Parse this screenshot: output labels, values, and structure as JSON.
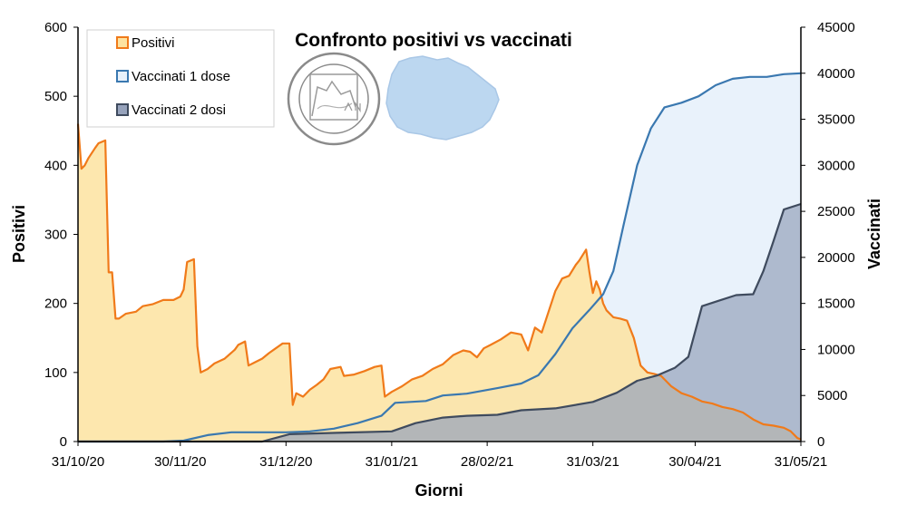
{
  "chart_data": {
    "type": "area",
    "title": "Confronto positivi vs vaccinati",
    "xlabel": "Giorni",
    "ylabel": "Positivi",
    "y2label": "Vaccinati",
    "x_ticks": [
      "31/10/20",
      "30/11/20",
      "31/12/20",
      "31/01/21",
      "28/02/21",
      "31/03/21",
      "30/04/21",
      "31/05/21"
    ],
    "ylim": [
      0,
      600
    ],
    "y_ticks": [
      "0",
      "100",
      "200",
      "300",
      "400",
      "500",
      "600"
    ],
    "y2lim": [
      0,
      45000
    ],
    "y2_ticks": [
      "0",
      "5000",
      "10000",
      "15000",
      "20000",
      "25000",
      "30000",
      "35000",
      "40000",
      "45000"
    ],
    "legend_position": "top-left",
    "colors": {
      "positivi_line": "#F07A1A",
      "positivi_fill": "#FDE3A0",
      "dose1_line": "#3A78B0",
      "dose1_fill": "#E7F1FB",
      "dose2_line": "#3F4B5E",
      "dose2_fill": "#97A3BC"
    },
    "series": [
      {
        "name": "Positivi",
        "axis": "left",
        "points": [
          [
            "2020-10-31",
            460
          ],
          [
            "2020-11-01",
            395
          ],
          [
            "2020-11-02",
            400
          ],
          [
            "2020-11-03",
            410
          ],
          [
            "2020-11-05",
            425
          ],
          [
            "2020-11-06",
            432
          ],
          [
            "2020-11-08",
            436
          ],
          [
            "2020-11-09",
            245
          ],
          [
            "2020-11-10",
            245
          ],
          [
            "2020-11-11",
            178
          ],
          [
            "2020-11-12",
            178
          ],
          [
            "2020-11-14",
            185
          ],
          [
            "2020-11-17",
            188
          ],
          [
            "2020-11-19",
            196
          ],
          [
            "2020-11-22",
            199
          ],
          [
            "2020-11-25",
            205
          ],
          [
            "2020-11-28",
            205
          ],
          [
            "2020-11-30",
            210
          ],
          [
            "2020-12-01",
            220
          ],
          [
            "2020-12-02",
            260
          ],
          [
            "2020-12-04",
            264
          ],
          [
            "2020-12-05",
            138
          ],
          [
            "2020-12-06",
            100
          ],
          [
            "2020-12-08",
            105
          ],
          [
            "2020-12-10",
            113
          ],
          [
            "2020-12-13",
            120
          ],
          [
            "2020-12-16",
            133
          ],
          [
            "2020-12-17",
            140
          ],
          [
            "2020-12-19",
            145
          ],
          [
            "2020-12-20",
            110
          ],
          [
            "2020-12-22",
            115
          ],
          [
            "2020-12-24",
            120
          ],
          [
            "2020-12-26",
            128
          ],
          [
            "2020-12-28",
            135
          ],
          [
            "2020-12-30",
            142
          ],
          [
            "2021-01-01",
            142
          ],
          [
            "2021-01-02",
            53
          ],
          [
            "2021-01-03",
            70
          ],
          [
            "2021-01-05",
            65
          ],
          [
            "2021-01-07",
            75
          ],
          [
            "2021-01-09",
            82
          ],
          [
            "2021-01-11",
            90
          ],
          [
            "2021-01-13",
            105
          ],
          [
            "2021-01-16",
            108
          ],
          [
            "2021-01-17",
            95
          ],
          [
            "2021-01-20",
            97
          ],
          [
            "2021-01-23",
            102
          ],
          [
            "2021-01-26",
            108
          ],
          [
            "2021-01-28",
            110
          ],
          [
            "2021-01-29",
            65
          ],
          [
            "2021-01-31",
            72
          ],
          [
            "2021-02-03",
            80
          ],
          [
            "2021-02-06",
            90
          ],
          [
            "2021-02-09",
            95
          ],
          [
            "2021-02-12",
            105
          ],
          [
            "2021-02-15",
            112
          ],
          [
            "2021-02-18",
            125
          ],
          [
            "2021-02-21",
            132
          ],
          [
            "2021-02-23",
            130
          ],
          [
            "2021-02-25",
            122
          ],
          [
            "2021-02-27",
            135
          ],
          [
            "2021-03-01",
            140
          ],
          [
            "2021-03-04",
            148
          ],
          [
            "2021-03-07",
            158
          ],
          [
            "2021-03-10",
            155
          ],
          [
            "2021-03-12",
            132
          ],
          [
            "2021-03-14",
            165
          ],
          [
            "2021-03-16",
            158
          ],
          [
            "2021-03-18",
            188
          ],
          [
            "2021-03-20",
            218
          ],
          [
            "2021-03-22",
            236
          ],
          [
            "2021-03-24",
            240
          ],
          [
            "2021-03-26",
            256
          ],
          [
            "2021-03-27",
            262
          ],
          [
            "2021-03-29",
            278
          ],
          [
            "2021-03-30",
            245
          ],
          [
            "2021-03-31",
            215
          ],
          [
            "2021-04-01",
            232
          ],
          [
            "2021-04-02",
            220
          ],
          [
            "2021-04-03",
            200
          ],
          [
            "2021-04-04",
            190
          ],
          [
            "2021-04-06",
            180
          ],
          [
            "2021-04-08",
            178
          ],
          [
            "2021-04-10",
            175
          ],
          [
            "2021-04-12",
            150
          ],
          [
            "2021-04-14",
            110
          ],
          [
            "2021-04-16",
            100
          ],
          [
            "2021-04-18",
            98
          ],
          [
            "2021-04-20",
            95
          ],
          [
            "2021-04-23",
            80
          ],
          [
            "2021-04-26",
            70
          ],
          [
            "2021-04-29",
            65
          ],
          [
            "2021-05-02",
            58
          ],
          [
            "2021-05-05",
            55
          ],
          [
            "2021-05-08",
            50
          ],
          [
            "2021-05-11",
            47
          ],
          [
            "2021-05-14",
            42
          ],
          [
            "2021-05-17",
            32
          ],
          [
            "2021-05-20",
            25
          ],
          [
            "2021-05-23",
            23
          ],
          [
            "2021-05-26",
            20
          ],
          [
            "2021-05-28",
            15
          ],
          [
            "2021-05-30",
            5
          ],
          [
            "2021-05-31",
            3
          ]
        ]
      },
      {
        "name": "Vaccinati 1 dose",
        "axis": "right",
        "points": [
          [
            "2020-10-31",
            0
          ],
          [
            "2020-11-25",
            0
          ],
          [
            "2020-12-01",
            100
          ],
          [
            "2020-12-08",
            700
          ],
          [
            "2020-12-15",
            1000
          ],
          [
            "2020-12-31",
            1000
          ],
          [
            "2021-01-07",
            1100
          ],
          [
            "2021-01-14",
            1400
          ],
          [
            "2021-01-21",
            2000
          ],
          [
            "2021-01-28",
            2800
          ],
          [
            "2021-02-01",
            4200
          ],
          [
            "2021-02-10",
            4400
          ],
          [
            "2021-02-15",
            5000
          ],
          [
            "2021-02-22",
            5200
          ],
          [
            "2021-03-03",
            5800
          ],
          [
            "2021-03-10",
            6300
          ],
          [
            "2021-03-15",
            7200
          ],
          [
            "2021-03-20",
            9500
          ],
          [
            "2021-03-25",
            12300
          ],
          [
            "2021-03-30",
            14300
          ],
          [
            "2021-04-03",
            16000
          ],
          [
            "2021-04-06",
            18500
          ],
          [
            "2021-04-09",
            23500
          ],
          [
            "2021-04-13",
            30000
          ],
          [
            "2021-04-17",
            34000
          ],
          [
            "2021-04-21",
            36300
          ],
          [
            "2021-04-26",
            36800
          ],
          [
            "2021-05-01",
            37500
          ],
          [
            "2021-05-06",
            38700
          ],
          [
            "2021-05-11",
            39400
          ],
          [
            "2021-05-16",
            39600
          ],
          [
            "2021-05-21",
            39600
          ],
          [
            "2021-05-26",
            39900
          ],
          [
            "2021-05-31",
            40000
          ]
        ]
      },
      {
        "name": "Vaccinati 2 dosi",
        "axis": "right",
        "points": [
          [
            "2020-10-31",
            0
          ],
          [
            "2020-12-24",
            0
          ],
          [
            "2021-01-01",
            800
          ],
          [
            "2021-01-15",
            950
          ],
          [
            "2021-01-31",
            1100
          ],
          [
            "2021-02-07",
            2000
          ],
          [
            "2021-02-15",
            2600
          ],
          [
            "2021-02-22",
            2800
          ],
          [
            "2021-03-03",
            2900
          ],
          [
            "2021-03-10",
            3400
          ],
          [
            "2021-03-20",
            3600
          ],
          [
            "2021-03-31",
            4300
          ],
          [
            "2021-04-07",
            5300
          ],
          [
            "2021-04-13",
            6600
          ],
          [
            "2021-04-19",
            7200
          ],
          [
            "2021-04-24",
            8000
          ],
          [
            "2021-04-28",
            9200
          ],
          [
            "2021-05-02",
            14700
          ],
          [
            "2021-05-07",
            15300
          ],
          [
            "2021-05-12",
            15900
          ],
          [
            "2021-05-17",
            16000
          ],
          [
            "2021-05-20",
            18500
          ],
          [
            "2021-05-23",
            21800
          ],
          [
            "2021-05-26",
            25200
          ],
          [
            "2021-05-31",
            25800
          ]
        ]
      }
    ]
  }
}
